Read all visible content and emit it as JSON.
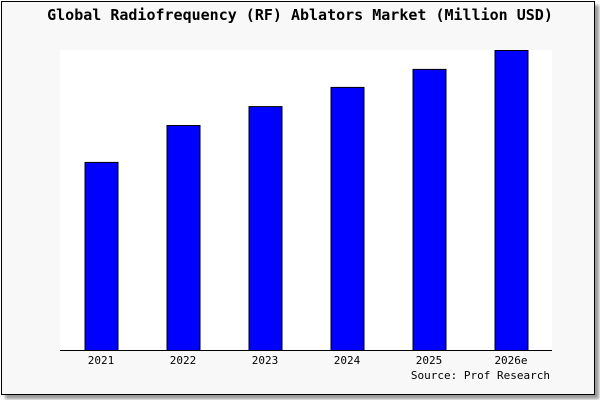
{
  "chart_data": {
    "type": "bar",
    "title": "Global Radiofrequency (RF) Ablators Market (Million USD)",
    "categories": [
      "2021",
      "2022",
      "2023",
      "2024",
      "2025",
      "2026e"
    ],
    "values": [
      62.7,
      75.0,
      81.3,
      87.7,
      93.7,
      100.0
    ],
    "xlabel": "",
    "ylabel": "",
    "ylim": [
      0,
      100
    ],
    "grid": false,
    "source": "Source: Prof Research",
    "bar_color": "#0000ff",
    "plot_background": "#ffffff",
    "background": "#f8f8f8"
  }
}
